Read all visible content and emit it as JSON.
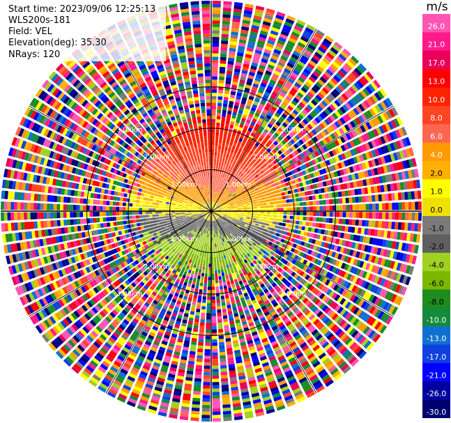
{
  "header": {
    "start_time": "Start time: 2023/09/06 12:25:13",
    "station": "WLS200s-181",
    "field": "Field: VEL",
    "elevation": "Elevation(deg): 35.30",
    "nrays": "NRays: 120"
  },
  "chart_data": {
    "type": "heatmap",
    "projection": "polar PPI",
    "field": "VEL",
    "units": "m/s",
    "nrays": 120,
    "range_rings_km": [
      1,
      2,
      3
    ],
    "range_ring_labels": [
      "1.00km",
      "2.00km",
      "3.00km"
    ],
    "colorbar": {
      "label": "m/s",
      "tick_labels": [
        "26.0",
        "21.0",
        "17.0",
        "13.0",
        "10.0",
        "8.0",
        "6.0",
        "4.0",
        "2.0",
        "1.0",
        "0.0",
        "-1.0",
        "-2.0",
        "-4.0",
        "-6.0",
        "-8.0",
        "-10.0",
        "-13.0",
        "-17.0",
        "-21.0",
        "-26.0",
        "-30.0"
      ],
      "colors": [
        "#ff55b4",
        "#ff1a8c",
        "#e8005a",
        "#ff0000",
        "#ff2200",
        "#ff4422",
        "#ff6650",
        "#ff9a00",
        "#ffb000",
        "#ffff00",
        "#f0e000",
        "#7a7a7a",
        "#5f5f5f",
        "#a0d020",
        "#7cb800",
        "#1e8c1e",
        "#138a3c",
        "#1070d0",
        "#1040e0",
        "#0000ff",
        "#0000a0",
        "#000070"
      ]
    }
  }
}
